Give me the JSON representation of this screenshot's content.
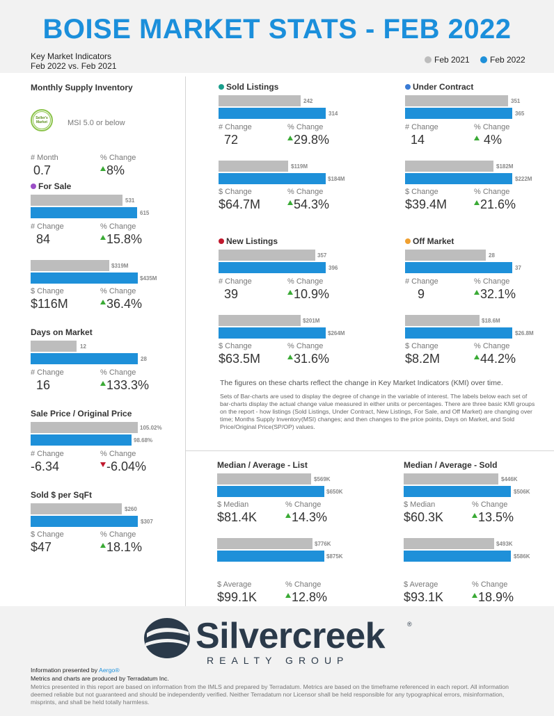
{
  "header": {
    "title": "BOISE MARKET STATS - FEB 2022",
    "subtitle_line1": "Key Market Indicators",
    "subtitle_line2": "Feb 2022 vs. Feb 2021",
    "legend_prev": "Feb 2021",
    "legend_curr": "Feb 2022"
  },
  "colors": {
    "prev": "#bdbdbd",
    "curr": "#1e90d9",
    "title": "#1b8fdb",
    "up": "#3aaa35",
    "down": "#c0182d"
  },
  "msi": {
    "title": "Monthly Supply Inventory",
    "badge": "Seller's Market",
    "note": "MSI 5.0 or below",
    "label1": "# Month",
    "value1": "0.7",
    "label2": "% Change",
    "value2": "8%"
  },
  "for_sale": {
    "title": "For Sale",
    "dot_color": "#9b4fc6",
    "count": {
      "prev": "531",
      "curr": "615",
      "label1": "# Change",
      "value1": "84",
      "label2": "% Change",
      "value2": "15.8%"
    },
    "dollar": {
      "prev": "$319M",
      "curr": "$435M",
      "label1": "$ Change",
      "value1": "$116M",
      "label2": "% Change",
      "value2": "36.4%"
    }
  },
  "dom": {
    "title": "Days on Market",
    "prev": "12",
    "curr": "28",
    "label1": "# Change",
    "value1": "16",
    "label2": "% Change",
    "value2": "133.3%"
  },
  "sp_op": {
    "title": "Sale Price / Original Price",
    "prev": "105.02%",
    "curr": "98.68%",
    "label1": "# Change",
    "value1": "-6.34",
    "label2": "% Change",
    "value2": "-6.04%"
  },
  "sqft": {
    "title": "Sold $ per SqFt",
    "prev": "$260",
    "curr": "$307",
    "label1": "$ Change",
    "value1": "$47",
    "label2": "% Change",
    "value2": "18.1%"
  },
  "sold": {
    "title": "Sold Listings",
    "dot_color": "#1a9e8c",
    "count": {
      "prev": "242",
      "curr": "314",
      "label1": "# Change",
      "value1": "72",
      "label2": "% Change",
      "value2": "29.8%"
    },
    "dollar": {
      "prev": "$119M",
      "curr": "$184M",
      "label1": "$ Change",
      "value1": "$64.7M",
      "label2": "% Change",
      "value2": "54.3%"
    }
  },
  "under_contract": {
    "title": "Under Contract",
    "dot_color": "#3a7bd5",
    "count": {
      "prev": "351",
      "curr": "365",
      "label1": "# Change",
      "value1": "14",
      "label2": "% Change",
      "value2": "4%"
    },
    "dollar": {
      "prev": "$182M",
      "curr": "$222M",
      "label1": "$ Change",
      "value1": "$39.4M",
      "label2": "% Change",
      "value2": "21.6%"
    }
  },
  "new_listings": {
    "title": "New Listings",
    "dot_color": "#c0182d",
    "count": {
      "prev": "357",
      "curr": "396",
      "label1": "# Change",
      "value1": "39",
      "label2": "% Change",
      "value2": "10.9%"
    },
    "dollar": {
      "prev": "$201M",
      "curr": "$264M",
      "label1": "$ Change",
      "value1": "$63.5M",
      "label2": "% Change",
      "value2": "31.6%"
    }
  },
  "off_market": {
    "title": "Off Market",
    "dot_color": "#f0a030",
    "count": {
      "prev": "28",
      "curr": "37",
      "label1": "# Change",
      "value1": "9",
      "label2": "% Change",
      "value2": "32.1%"
    },
    "dollar": {
      "prev": "$18.6M",
      "curr": "$26.8M",
      "label1": "$ Change",
      "value1": "$8.2M",
      "label2": "% Change",
      "value2": "44.2%"
    }
  },
  "description": {
    "main": "The figures on these charts reflect the change in Key Market Indicators (KMI) over time.",
    "small": "Sets of Bar-charts are used to display the degree of change in the variable of interest. The labels below each set of bar-charts display the actual change value measured in either units or percentages. There are three basic KMI groups on the report - how listings (Sold Listings, Under Contract, New Listings, For Sale, and Off Market) are changing over time; Months Supply Inventory(MSI) changes; and then changes to the price points, Days on Market, and Sold Price/Original Price(SP/OP) values."
  },
  "list_price": {
    "title": "Median / Average - List",
    "median": {
      "prev": "$569K",
      "curr": "$650K",
      "label1": "$ Median",
      "value1": "$81.4K",
      "label2": "% Change",
      "value2": "14.3%"
    },
    "average": {
      "prev": "$776K",
      "curr": "$875K",
      "label1": "$ Average",
      "value1": "$99.1K",
      "label2": "% Change",
      "value2": "12.8%"
    }
  },
  "sold_price": {
    "title": "Median / Average - Sold",
    "median": {
      "prev": "$446K",
      "curr": "$506K",
      "label1": "$ Median",
      "value1": "$60.3K",
      "label2": "% Change",
      "value2": "13.5%"
    },
    "average": {
      "prev": "$493K",
      "curr": "$586K",
      "label1": "$ Average",
      "value1": "$93.1K",
      "label2": "% Change",
      "value2": "18.9%"
    }
  },
  "footer": {
    "logo_main": "Silvercreek",
    "logo_sub": "REALTY GROUP",
    "logo_reg": "®",
    "presented_prefix": "Information presented by ",
    "presented_link": "Aergo®",
    "produced": "Metrics and charts are produced by Terradatum Inc.",
    "disclaimer": "Metrics presented in this report are based on information from the IMLS and prepared by Terradatum. Metrics are based on the timeframe referenced in each report. All information deemed reliable but not guaranteed and should be independently verified. Neither Terradatum nor Licensor shall be held responsible for any typographical errors, misinformation, misprints, and shall be held totally harmless."
  }
}
